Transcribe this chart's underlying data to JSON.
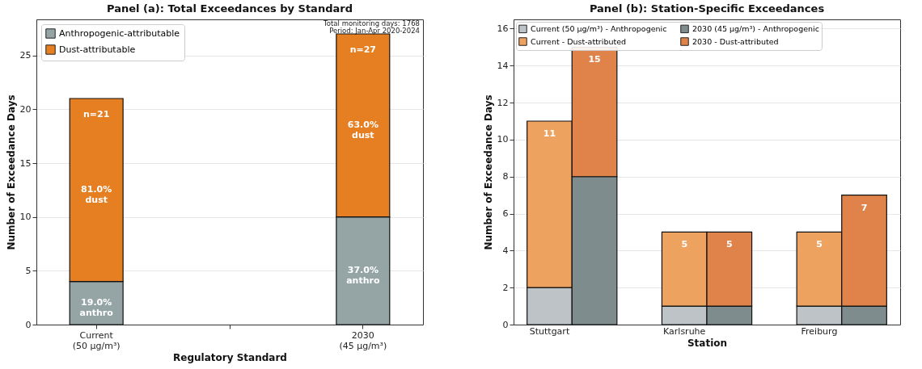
{
  "chart_data": [
    {
      "type": "bar",
      "title": "Panel (a): Total Exceedances by Standard",
      "xlabel": "Regulatory Standard",
      "ylabel": "Number of Exceedance Days",
      "categories": [
        "Current\n(50 µg/m³)",
        "2030\n(45 µg/m³)"
      ],
      "stacked": true,
      "series": [
        {
          "name": "Anthropogenic-attributable",
          "color": "#95a5a6",
          "values": [
            4,
            10
          ]
        },
        {
          "name": "Dust-attributable",
          "color": "#e67e22",
          "values": [
            17,
            17
          ]
        }
      ],
      "totals": [
        "n=21",
        "n=27"
      ],
      "ylim": [
        0,
        28.35
      ],
      "yticks": [
        0,
        5,
        10,
        15,
        20,
        25
      ],
      "grid": "y",
      "legend": "top left",
      "annotations": [
        "19.0%\nanthro",
        "37.0%\nanthro",
        "81.0%\ndust",
        "63.0%\ndust",
        "Total monitoring days: 1768\nPeriod: Jan-Apr 2020-2024"
      ]
    },
    {
      "type": "bar",
      "title": "Panel (b): Station-Specific Exceedances",
      "xlabel": "Station",
      "ylabel": "Number of Exceedance Days",
      "categories": [
        "Stuttgart",
        null,
        "Karlsruhe",
        null,
        "Freiburg",
        null
      ],
      "stacked": true,
      "series": [
        {
          "name": "Current (50 µg/m³) - Anthropogenic",
          "color": "#bdc3c7",
          "values": [
            2,
            null,
            1,
            null,
            1,
            null
          ]
        },
        {
          "name": "Current - Dust-attributed",
          "color": "#eda260",
          "values": [
            9,
            null,
            4,
            null,
            4,
            null
          ]
        },
        {
          "name": "2030 (45 µg/m³) - Anthropogenic",
          "color": "#7f8c8d",
          "values": [
            null,
            8,
            null,
            1,
            null,
            1
          ]
        },
        {
          "name": "2030 - Dust-attributed",
          "color": "#e0834a",
          "values": [
            null,
            7,
            null,
            4,
            null,
            6
          ]
        }
      ],
      "totals": [
        "11",
        "15",
        "5",
        "5",
        "5",
        "7"
      ],
      "ylim": [
        0,
        16.5
      ],
      "yticks": [
        0,
        2,
        4,
        6,
        8,
        10,
        12,
        14,
        16
      ],
      "grid": "y",
      "legend": "top left"
    }
  ]
}
